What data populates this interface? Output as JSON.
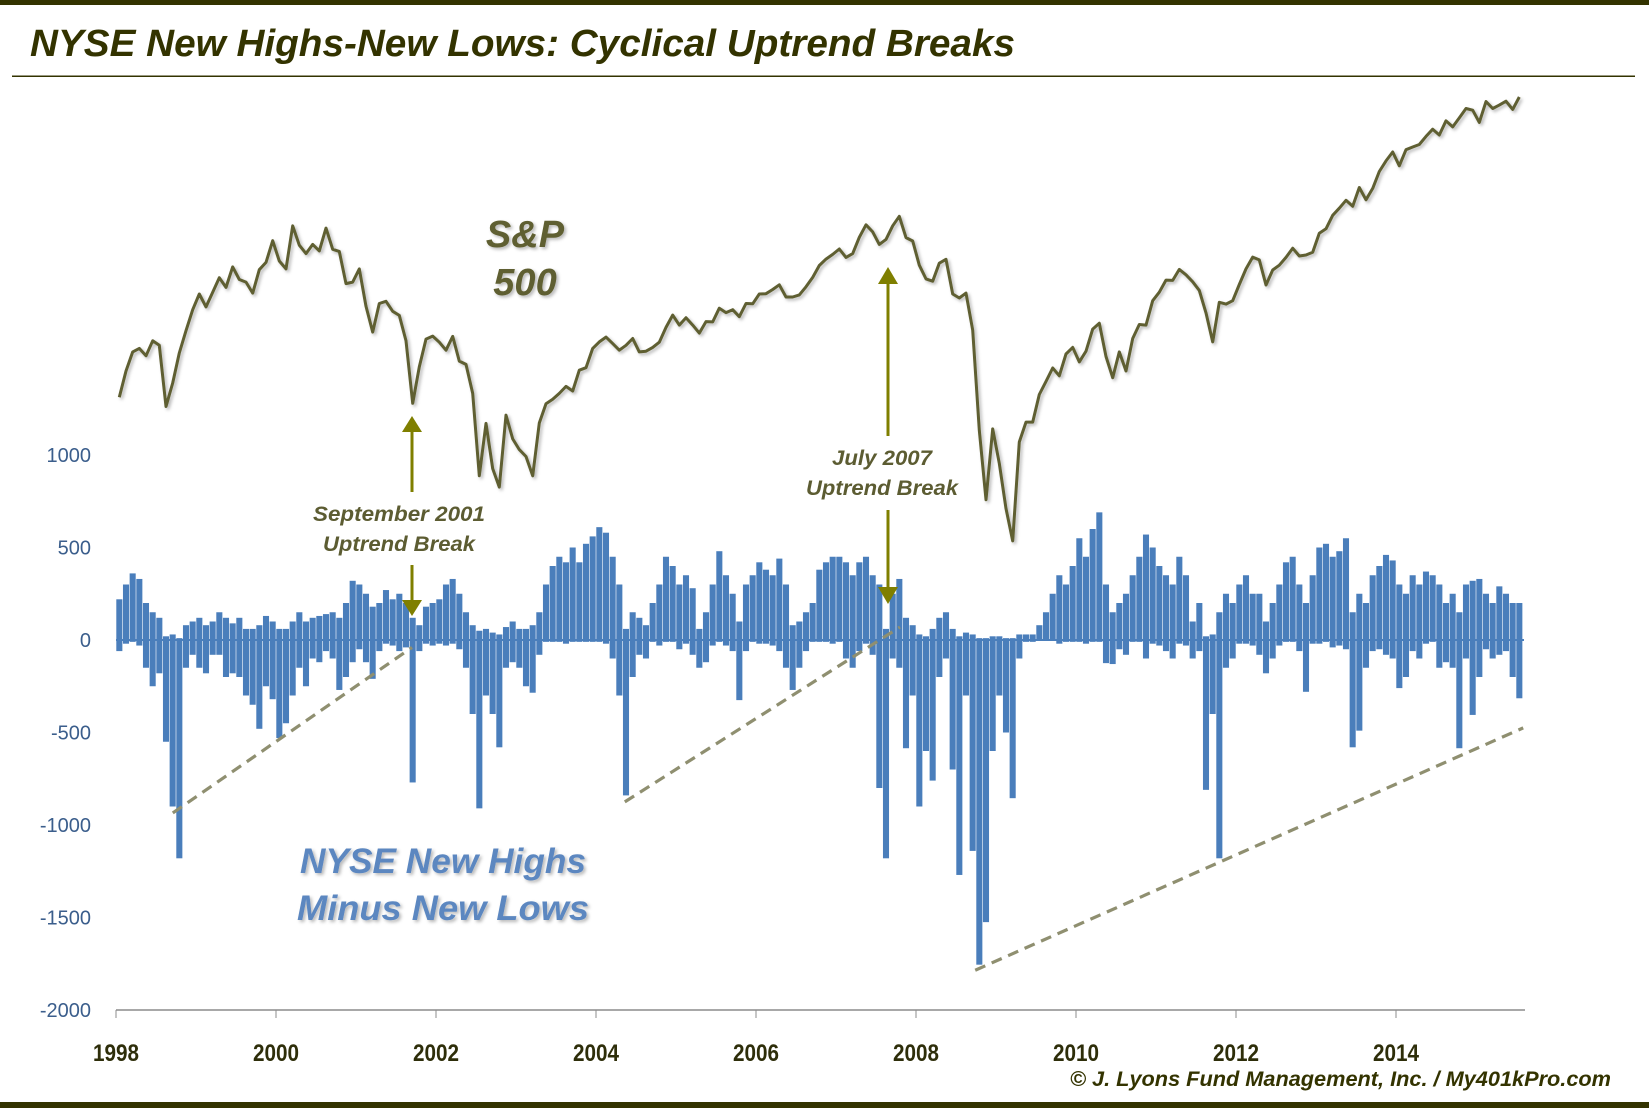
{
  "title": "NYSE New Highs-New Lows: Cyclical Uptrend Breaks",
  "copyright": "© J. Lyons Fund Management, Inc. / My401kPro.com",
  "colors": {
    "frame": "#333300",
    "title": "#333300",
    "bars": "#4a7ebb",
    "sp500_line": "#5f5f30",
    "arrows": "#7f7f00",
    "trendline": "#8f8f70",
    "y_tick_labels": "#3b5e8c",
    "x_tick_labels": "#2e2e0a",
    "annotation_text": "#5c5c32",
    "nh_nl_label": "#5b87c0",
    "axis": "#8c8c8c"
  },
  "annotations": {
    "sp500_label": [
      "S&P",
      "500"
    ],
    "nh_nl_label": [
      "NYSE New Highs",
      "Minus New Lows"
    ],
    "sep2001": [
      "September 2001",
      "Uptrend Break"
    ],
    "jul2007": [
      "July 2007",
      "Uptrend Break"
    ]
  },
  "chart_data": {
    "type": "bar",
    "x_start": "1998-01",
    "x_end": "2015-07",
    "x_resolution": "monthly (daily range shown as monthly high/low)",
    "x_ticks": [
      "1998",
      "2000",
      "2002",
      "2004",
      "2006",
      "2008",
      "2010",
      "2012",
      "2014"
    ],
    "xlim": [
      1998,
      2015.6
    ],
    "y_ticks": [
      "1000",
      "500",
      "0",
      "-500",
      "-1000",
      "-1500",
      "-2000"
    ],
    "ylim": [
      -2000,
      1000
    ],
    "grid": false,
    "legend": "none",
    "series": [
      {
        "name": "NYSE New Highs Minus New Lows",
        "type": "bar",
        "monthly_high": [
          220,
          300,
          360,
          330,
          200,
          150,
          120,
          20,
          30,
          10,
          80,
          100,
          120,
          80,
          100,
          150,
          120,
          90,
          120,
          60,
          60,
          80,
          130,
          100,
          60,
          60,
          100,
          150,
          100,
          120,
          130,
          140,
          150,
          120,
          200,
          320,
          300,
          250,
          180,
          200,
          270,
          220,
          250,
          200,
          120,
          80,
          180,
          200,
          220,
          300,
          330,
          250,
          150,
          80,
          50,
          60,
          40,
          30,
          70,
          100,
          60,
          60,
          80,
          150,
          300,
          400,
          450,
          420,
          500,
          420,
          520,
          560,
          610,
          580,
          450,
          300,
          60,
          150,
          120,
          80,
          200,
          300,
          450,
          400,
          300,
          350,
          280,
          60,
          150,
          300,
          480,
          350,
          250,
          100,
          300,
          350,
          420,
          380,
          350,
          440,
          300,
          80,
          100,
          150,
          200,
          380,
          420,
          450,
          450,
          420,
          350,
          420,
          450,
          350,
          300,
          60,
          250,
          330,
          120,
          80,
          30,
          20,
          60,
          120,
          150,
          60,
          20,
          40,
          30,
          10,
          10,
          20,
          20,
          10,
          10,
          30,
          30,
          30,
          80,
          150,
          250,
          350,
          300,
          400,
          550,
          450,
          600,
          690,
          300,
          150,
          200,
          250,
          350,
          450,
          570,
          500,
          400,
          350,
          300,
          450,
          350,
          100,
          200,
          20,
          30,
          150,
          250,
          200,
          300,
          350,
          250,
          250,
          100,
          200,
          300,
          420,
          450,
          300,
          200,
          350,
          500,
          520,
          450,
          480,
          550,
          150,
          250,
          200,
          350,
          400,
          460,
          430,
          300,
          250,
          350,
          300,
          370,
          350,
          300,
          200,
          250,
          150,
          300,
          320,
          330,
          250,
          200,
          290,
          250,
          200,
          200
        ],
        "monthly_low": [
          -60,
          -20,
          -10,
          -30,
          -150,
          -250,
          -180,
          -550,
          -900,
          -1180,
          -150,
          -80,
          -150,
          -180,
          -80,
          -80,
          -200,
          -180,
          -200,
          -300,
          -350,
          -480,
          -250,
          -320,
          -530,
          -450,
          -300,
          -150,
          -250,
          -100,
          -120,
          -60,
          -100,
          -270,
          -200,
          -120,
          -50,
          -120,
          -210,
          -60,
          -20,
          -30,
          -60,
          -40,
          -770,
          -60,
          -20,
          -30,
          -20,
          -30,
          -20,
          -50,
          -150,
          -400,
          -910,
          -300,
          -400,
          -580,
          -150,
          -120,
          -150,
          -250,
          -285,
          -80,
          -10,
          -10,
          -10,
          -20,
          -10,
          -10,
          -10,
          -10,
          -10,
          -20,
          -100,
          -300,
          -840,
          -200,
          -80,
          -100,
          -10,
          -30,
          -10,
          -10,
          -50,
          -20,
          -80,
          -150,
          -120,
          -30,
          -10,
          -30,
          -60,
          -325,
          -60,
          -10,
          -20,
          -20,
          -30,
          -60,
          -150,
          -270,
          -150,
          -60,
          -10,
          -10,
          -10,
          -20,
          -10,
          -100,
          -150,
          -60,
          -20,
          -80,
          -800,
          -1180,
          -100,
          -150,
          -585,
          -300,
          -900,
          -600,
          -760,
          -200,
          -100,
          -700,
          -1270,
          -300,
          -1140,
          -1755,
          -1525,
          -600,
          -300,
          -500,
          -855,
          -100,
          -10,
          -10,
          -5,
          -5,
          -5,
          -20,
          -10,
          -10,
          -10,
          -20,
          -10,
          -10,
          -125,
          -130,
          -50,
          -80,
          -10,
          -10,
          -100,
          -20,
          -30,
          -60,
          -100,
          -20,
          -30,
          -100,
          -60,
          -810,
          -400,
          -1180,
          -150,
          -100,
          -20,
          -20,
          -30,
          -80,
          -180,
          -100,
          -30,
          -10,
          -10,
          -60,
          -280,
          -20,
          -20,
          -10,
          -40,
          -30,
          -50,
          -580,
          -490,
          -150,
          -60,
          -50,
          -80,
          -100,
          -260,
          -200,
          -60,
          -100,
          -20,
          -10,
          -150,
          -120,
          -150,
          -585,
          -100,
          -405,
          -200,
          -50,
          -100,
          -80,
          -60,
          -200,
          -315
        ]
      },
      {
        "name": "S&P 500",
        "type": "line",
        "axis": "secondary (hidden)",
        "scale": "log",
        "y2lim": [
          201,
          2226
        ],
        "values": [
          980,
          1049,
          1102,
          1112,
          1091,
          1134,
          1121,
          957,
          1017,
          1099,
          1164,
          1229,
          1280,
          1238,
          1286,
          1335,
          1302,
          1373,
          1329,
          1320,
          1283,
          1363,
          1389,
          1469,
          1394,
          1366,
          1527,
          1452,
          1421,
          1455,
          1431,
          1518,
          1437,
          1429,
          1315,
          1320,
          1366,
          1240,
          1160,
          1249,
          1256,
          1224,
          1211,
          1134,
          965,
          1060,
          1139,
          1148,
          1130,
          1107,
          1147,
          1076,
          1067,
          990,
          800,
          916,
          815,
          777,
          936,
          880,
          856,
          841,
          800,
          917,
          964,
          975,
          990,
          1008,
          996,
          1051,
          1058,
          1112,
          1131,
          1145,
          1126,
          1107,
          1121,
          1141,
          1102,
          1104,
          1115,
          1130,
          1174,
          1212,
          1181,
          1204,
          1181,
          1157,
          1192,
          1191,
          1234,
          1220,
          1229,
          1207,
          1249,
          1248,
          1280,
          1281,
          1295,
          1311,
          1270,
          1270,
          1277,
          1304,
          1336,
          1378,
          1401,
          1418,
          1438,
          1407,
          1421,
          1482,
          1531,
          1503,
          1455,
          1474,
          1527,
          1565,
          1481,
          1468,
          1379,
          1331,
          1323,
          1386,
          1400,
          1280,
          1267,
          1283,
          1166,
          900,
          752,
          903,
          826,
          735,
          676,
          873,
          919,
          919,
          987,
          1021,
          1057,
          1036,
          1096,
          1115,
          1074,
          1104,
          1169,
          1187,
          1089,
          1031,
          1102,
          1049,
          1141,
          1183,
          1181,
          1258,
          1286,
          1327,
          1326,
          1364,
          1345,
          1321,
          1292,
          1219,
          1131,
          1253,
          1247,
          1258,
          1312,
          1366,
          1408,
          1398,
          1310,
          1362,
          1379,
          1407,
          1441,
          1412,
          1416,
          1426,
          1498,
          1515,
          1569,
          1598,
          1631,
          1606,
          1686,
          1633,
          1682,
          1757,
          1806,
          1848,
          1783,
          1859,
          1872,
          1884,
          1924,
          1960,
          1931,
          2003,
          1972,
          2018,
          2068,
          2059,
          1995,
          2105,
          2068,
          2086,
          2107,
          2063,
          2130
        ]
      }
    ],
    "trendlines": [
      {
        "from": [
          1998.71,
          -935
        ],
        "to": [
          2001.7,
          -40
        ]
      },
      {
        "from": [
          2004.36,
          -875
        ],
        "to": [
          2007.8,
          70
        ]
      },
      {
        "from": [
          2008.74,
          -1785
        ],
        "to": [
          2015.59,
          -475
        ]
      }
    ]
  }
}
